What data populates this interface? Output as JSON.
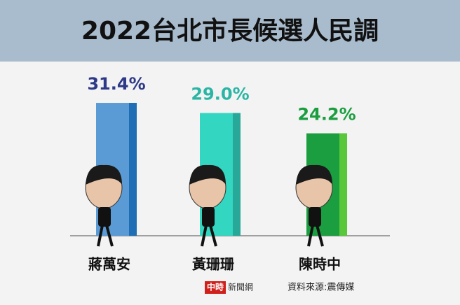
{
  "chart_data": {
    "type": "bar",
    "title": "2022台北市長候選人民調",
    "categories": [
      "蔣萬安",
      "黃珊珊",
      "陳時中"
    ],
    "values": [
      31.4,
      29.0,
      24.2
    ],
    "value_labels": [
      "31.4%",
      "29.0%",
      "24.2%"
    ],
    "colors": [
      "#5b9bd5",
      "#33d6c0",
      "#1a9e3f"
    ],
    "accent_colors": [
      "#1f6db5",
      "#28a898",
      "#58c83a"
    ],
    "label_colors": [
      "#2e3a87",
      "#2ab5a5",
      "#1a9e3f"
    ],
    "logo": "中時",
    "logo_suffix": "新聞網",
    "source": "資料來源:震傳媒"
  }
}
